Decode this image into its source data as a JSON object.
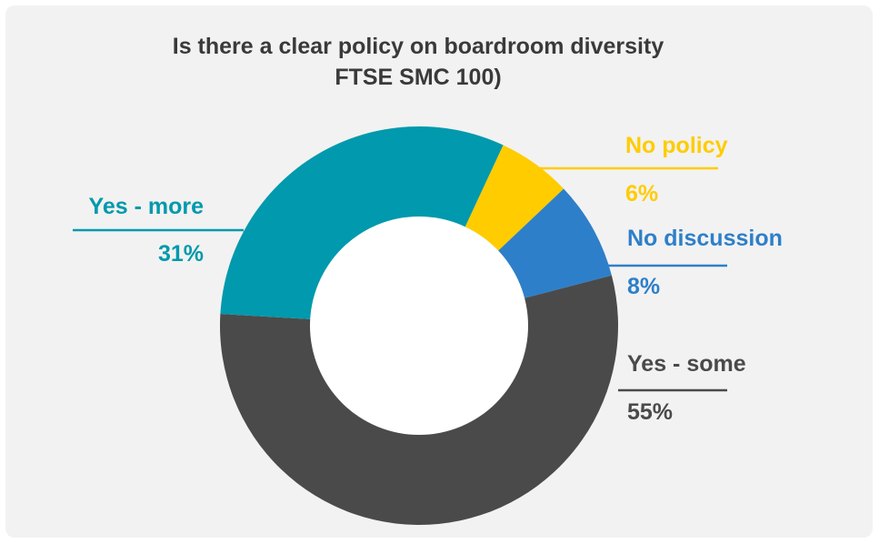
{
  "chart_data": {
    "type": "pie",
    "title": [
      "Is there a clear policy on boardroom diversity",
      "FTSE SMC 100)"
    ],
    "slices": [
      {
        "label": "No policy",
        "value": 6,
        "value_label": "6%",
        "color": "#ffcc00"
      },
      {
        "label": "No discussion",
        "value": 8,
        "value_label": "8%",
        "color": "#2e7fc9"
      },
      {
        "label": "Yes - some",
        "value": 55,
        "value_label": "55%",
        "color": "#4a4a4a"
      },
      {
        "label": "Yes - more",
        "value": 31,
        "value_label": "31%",
        "color": "#0099ad"
      }
    ],
    "donut": true,
    "legend": "none"
  }
}
